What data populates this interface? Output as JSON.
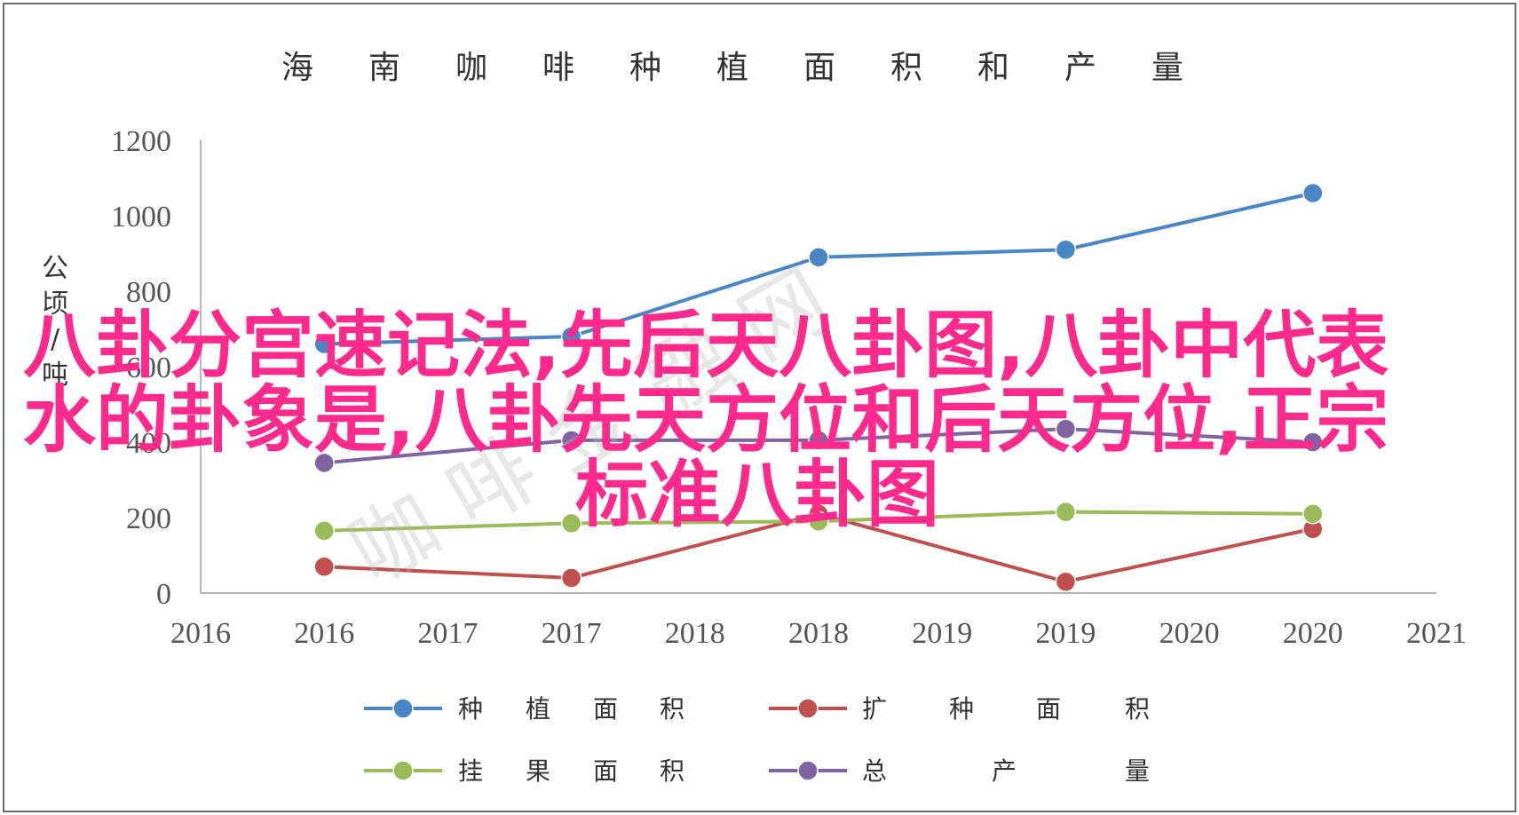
{
  "chart_data": {
    "type": "line",
    "title": "海南咖啡种植面积和产量",
    "ylabel": "公顷/吨",
    "xlabel": "",
    "ylim": [
      0,
      1200
    ],
    "yticks": [
      "0",
      "200",
      "400",
      "600",
      "800",
      "1000",
      "1200"
    ],
    "x_ticklabels": [
      "2016",
      "2016",
      "2017",
      "2017",
      "2018",
      "2018",
      "2019",
      "2019",
      "2020",
      "2020",
      "2021"
    ],
    "categories": [
      "2016",
      "2017",
      "2018",
      "2019",
      "2020"
    ],
    "grid": false,
    "legend_position": "bottom",
    "series": [
      {
        "name": "种植面积",
        "color": "#4a86c5",
        "values": [
          660,
          680,
          890,
          910,
          1060
        ]
      },
      {
        "name": "扩种面积",
        "color": "#c0504d",
        "values": [
          70,
          40,
          210,
          30,
          170
        ]
      },
      {
        "name": "挂果面积",
        "color": "#9bbb59",
        "values": [
          165,
          185,
          190,
          215,
          210
        ]
      },
      {
        "name": "总产量",
        "color": "#8064a2",
        "values": [
          345,
          405,
          405,
          435,
          400
        ]
      }
    ],
    "legend_labels": [
      [
        "种",
        "植",
        "面",
        "积"
      ],
      [
        "扩",
        "种",
        "面",
        "积"
      ],
      [
        "挂",
        "果",
        "面",
        "积"
      ],
      [
        "总",
        "产",
        "量"
      ]
    ]
  },
  "overlay": {
    "line1": "八卦分宫速记法,先后天八卦图,八卦中代表",
    "line2": "水的卦象是,八卦先天方位和后天方位,正宗",
    "line3": "标准八卦图"
  },
  "watermark": "咖 啡 金 融 网"
}
